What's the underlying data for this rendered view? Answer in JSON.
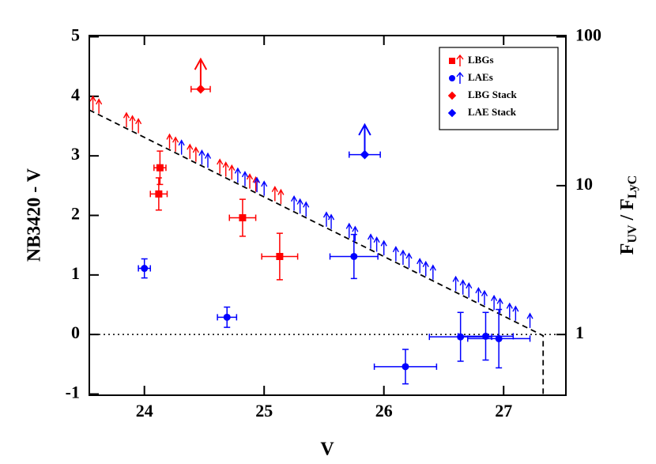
{
  "chart_data": {
    "type": "scatter",
    "x_label": "V",
    "y_label": "NB3420 - V",
    "y2_label": [
      "F",
      "UV",
      " / F",
      "LyC"
    ],
    "xlim": [
      23.54,
      27.52
    ],
    "xticks": [
      24,
      25,
      26,
      27
    ],
    "ylim": [
      -1.02,
      5.02
    ],
    "yticks": [
      -1,
      0,
      1,
      2,
      3,
      4,
      5
    ],
    "y2lim": [
      0.391,
      101.9
    ],
    "y2ticks": [
      1,
      10,
      100
    ],
    "y2_log": true,
    "hline": 0,
    "legend": "upper right",
    "limit_line": {
      "x": [
        23.54,
        27.33,
        27.33
      ],
      "values": [
        3.77,
        -0.02,
        -1.02
      ]
    },
    "series": [
      {
        "name": "LBGs",
        "color": "#ff0000",
        "marker": "square",
        "x": [
          24.13,
          24.12,
          24.82,
          25.13
        ],
        "values": [
          2.8,
          2.36,
          1.96,
          1.31
        ],
        "xerr": [
          0.05,
          0.07,
          0.11,
          0.15
        ],
        "yerr": [
          0.28,
          0.27,
          0.31,
          0.39
        ],
        "limit_x": [
          23.57,
          23.62,
          23.85,
          23.9,
          23.95,
          24.21,
          24.26,
          24.38,
          24.43,
          24.63,
          24.68,
          24.73,
          24.88,
          24.93,
          25.09,
          25.14
        ],
        "limit_values": [
          3.76,
          3.71,
          3.48,
          3.43,
          3.38,
          3.12,
          3.07,
          2.95,
          2.9,
          2.7,
          2.65,
          2.6,
          2.45,
          2.4,
          2.24,
          2.19
        ]
      },
      {
        "name": "LAEs",
        "color": "#0000ff",
        "marker": "circle",
        "x": [
          24.0,
          24.69,
          25.75,
          26.18,
          26.64,
          26.85,
          26.96
        ],
        "values": [
          1.11,
          0.29,
          1.31,
          -0.54,
          -0.04,
          -0.03,
          -0.07
        ],
        "xerr": [
          0.05,
          0.08,
          0.2,
          0.26,
          0.26,
          0.23,
          0.26
        ],
        "yerr": [
          0.16,
          0.17,
          0.37,
          0.29,
          0.41,
          0.4,
          0.49
        ],
        "limit_x": [
          24.31,
          24.48,
          24.53,
          24.78,
          24.84,
          24.94,
          25.0,
          25.25,
          25.3,
          25.35,
          25.52,
          25.56,
          25.71,
          25.76,
          25.89,
          25.94,
          26.0,
          26.1,
          26.16,
          26.21,
          26.3,
          26.35,
          26.41,
          26.6,
          26.66,
          26.71,
          26.79,
          26.84,
          26.92,
          26.97,
          27.05,
          27.1,
          27.22
        ],
        "limit_values": [
          3.02,
          2.85,
          2.8,
          2.55,
          2.49,
          2.39,
          2.33,
          2.08,
          2.03,
          1.98,
          1.81,
          1.77,
          1.62,
          1.57,
          1.44,
          1.39,
          1.33,
          1.23,
          1.17,
          1.12,
          1.03,
          0.98,
          0.92,
          0.73,
          0.67,
          0.62,
          0.54,
          0.49,
          0.41,
          0.36,
          0.28,
          0.23,
          0.11
        ]
      },
      {
        "name": "LBG Stack",
        "color": "#ff0000",
        "marker": "diamond",
        "lower_limit": true,
        "x": [
          24.47
        ],
        "values": [
          4.12
        ],
        "xerr": [
          0.08
        ]
      },
      {
        "name": "LAE Stack",
        "color": "#0000ff",
        "marker": "diamond",
        "lower_limit": true,
        "x": [
          25.84
        ],
        "values": [
          3.02
        ],
        "xerr": [
          0.13
        ]
      }
    ]
  }
}
